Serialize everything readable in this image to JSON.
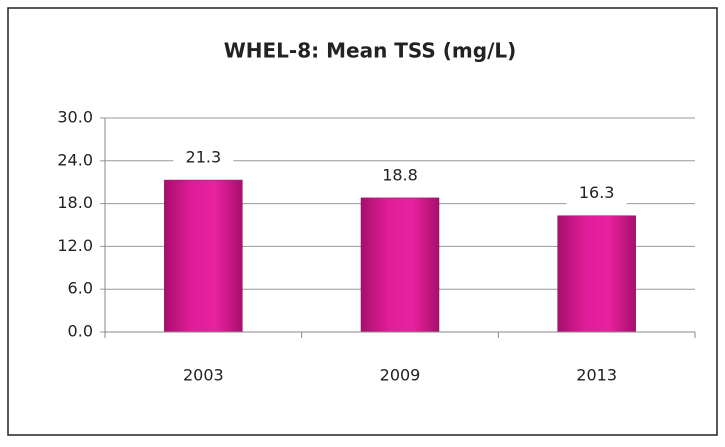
{
  "chart_data": {
    "type": "bar",
    "title": "WHEL-8: Mean TSS (mg/L)",
    "categories": [
      "2003",
      "2009",
      "2013"
    ],
    "values": [
      21.3,
      18.8,
      16.3
    ],
    "color": "#d4168c",
    "ylim": [
      0,
      30
    ],
    "yticks": [
      {
        "value": 0,
        "label": "0.0"
      },
      {
        "value": 6,
        "label": "6.0"
      },
      {
        "value": 12,
        "label": "12.0"
      },
      {
        "value": 18,
        "label": "18.0"
      },
      {
        "value": 24,
        "label": "24.0"
      },
      {
        "value": 30,
        "label": "30.0"
      }
    ],
    "grid": true
  }
}
